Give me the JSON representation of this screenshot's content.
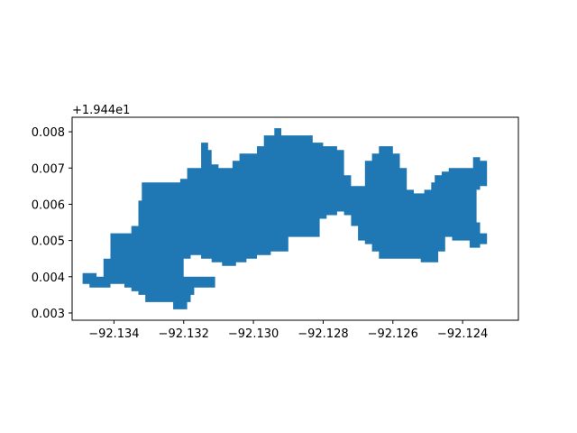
{
  "chart_data": {
    "type": "geo-raster-polygon",
    "offset_text": "+1.944e1",
    "x_ticks": [
      {
        "value": -92.134,
        "label": "−92.134"
      },
      {
        "value": -92.132,
        "label": "−92.132"
      },
      {
        "value": -92.13,
        "label": "−92.130"
      },
      {
        "value": -92.128,
        "label": "−92.128"
      },
      {
        "value": -92.126,
        "label": "−92.126"
      },
      {
        "value": -92.124,
        "label": "−92.124"
      }
    ],
    "y_ticks": [
      {
        "value": 0.003,
        "label": "0.003"
      },
      {
        "value": 0.004,
        "label": "0.004"
      },
      {
        "value": 0.005,
        "label": "0.005"
      },
      {
        "value": 0.006,
        "label": "0.006"
      },
      {
        "value": 0.007,
        "label": "0.007"
      },
      {
        "value": 0.008,
        "label": "0.008"
      }
    ],
    "xlim": [
      -92.1352,
      -92.1224
    ],
    "ylim": [
      0.0028,
      0.0084
    ],
    "grid": false,
    "fill_color": "#1f77b4",
    "outline": [
      [
        -92.1349,
        0.0041
      ],
      [
        -92.1345,
        0.0041
      ],
      [
        -92.1345,
        0.004
      ],
      [
        -92.1343,
        0.004
      ],
      [
        -92.1343,
        0.0045
      ],
      [
        -92.1341,
        0.0045
      ],
      [
        -92.1341,
        0.0052
      ],
      [
        -92.1335,
        0.0052
      ],
      [
        -92.1335,
        0.0054
      ],
      [
        -92.1333,
        0.0054
      ],
      [
        -92.1333,
        0.0061
      ],
      [
        -92.1332,
        0.0061
      ],
      [
        -92.1332,
        0.0066
      ],
      [
        -92.1321,
        0.0066
      ],
      [
        -92.1321,
        0.0067
      ],
      [
        -92.1319,
        0.0067
      ],
      [
        -92.1319,
        0.007
      ],
      [
        -92.1315,
        0.007
      ],
      [
        -92.1315,
        0.0077
      ],
      [
        -92.1313,
        0.0077
      ],
      [
        -92.1313,
        0.0075
      ],
      [
        -92.1312,
        0.0075
      ],
      [
        -92.1312,
        0.0071
      ],
      [
        -92.131,
        0.0071
      ],
      [
        -92.131,
        0.007
      ],
      [
        -92.1306,
        0.007
      ],
      [
        -92.1306,
        0.0072
      ],
      [
        -92.1304,
        0.0072
      ],
      [
        -92.1304,
        0.0074
      ],
      [
        -92.1299,
        0.0074
      ],
      [
        -92.1299,
        0.0076
      ],
      [
        -92.1297,
        0.0076
      ],
      [
        -92.1297,
        0.0079
      ],
      [
        -92.1294,
        0.0079
      ],
      [
        -92.1294,
        0.0081
      ],
      [
        -92.1292,
        0.0081
      ],
      [
        -92.1292,
        0.0079
      ],
      [
        -92.1283,
        0.0079
      ],
      [
        -92.1283,
        0.0077
      ],
      [
        -92.128,
        0.0077
      ],
      [
        -92.128,
        0.0076
      ],
      [
        -92.1276,
        0.0076
      ],
      [
        -92.1276,
        0.0075
      ],
      [
        -92.1274,
        0.0075
      ],
      [
        -92.1274,
        0.0068
      ],
      [
        -92.1272,
        0.0068
      ],
      [
        -92.1272,
        0.0065
      ],
      [
        -92.1268,
        0.0065
      ],
      [
        -92.1268,
        0.0072
      ],
      [
        -92.1266,
        0.0072
      ],
      [
        -92.1266,
        0.0074
      ],
      [
        -92.1264,
        0.0074
      ],
      [
        -92.1264,
        0.0076
      ],
      [
        -92.126,
        0.0076
      ],
      [
        -92.126,
        0.0074
      ],
      [
        -92.1258,
        0.0074
      ],
      [
        -92.1258,
        0.007
      ],
      [
        -92.1256,
        0.007
      ],
      [
        -92.1256,
        0.0064
      ],
      [
        -92.1254,
        0.0064
      ],
      [
        -92.1254,
        0.0063
      ],
      [
        -92.1251,
        0.0063
      ],
      [
        -92.1251,
        0.0064
      ],
      [
        -92.1249,
        0.0064
      ],
      [
        -92.1249,
        0.0066
      ],
      [
        -92.1248,
        0.0066
      ],
      [
        -92.1248,
        0.0068
      ],
      [
        -92.1246,
        0.0068
      ],
      [
        -92.1246,
        0.0069
      ],
      [
        -92.1244,
        0.0069
      ],
      [
        -92.1244,
        0.007
      ],
      [
        -92.1237,
        0.007
      ],
      [
        -92.1237,
        0.0073
      ],
      [
        -92.1235,
        0.0073
      ],
      [
        -92.1235,
        0.0072
      ],
      [
        -92.1233,
        0.0072
      ],
      [
        -92.1233,
        0.0065
      ],
      [
        -92.1235,
        0.0065
      ],
      [
        -92.1235,
        0.0064
      ],
      [
        -92.1236,
        0.0064
      ],
      [
        -92.1236,
        0.0055
      ],
      [
        -92.1235,
        0.0055
      ],
      [
        -92.1235,
        0.0052
      ],
      [
        -92.1233,
        0.0052
      ],
      [
        -92.1233,
        0.0049
      ],
      [
        -92.1235,
        0.0049
      ],
      [
        -92.1235,
        0.0048
      ],
      [
        -92.1238,
        0.0048
      ],
      [
        -92.1238,
        0.005
      ],
      [
        -92.1243,
        0.005
      ],
      [
        -92.1243,
        0.0051
      ],
      [
        -92.1245,
        0.0051
      ],
      [
        -92.1245,
        0.0047
      ],
      [
        -92.1247,
        0.0047
      ],
      [
        -92.1247,
        0.0044
      ],
      [
        -92.1252,
        0.0044
      ],
      [
        -92.1252,
        0.0045
      ],
      [
        -92.1264,
        0.0045
      ],
      [
        -92.1264,
        0.0047
      ],
      [
        -92.1266,
        0.0047
      ],
      [
        -92.1266,
        0.0049
      ],
      [
        -92.1268,
        0.0049
      ],
      [
        -92.1268,
        0.005
      ],
      [
        -92.127,
        0.005
      ],
      [
        -92.127,
        0.0054
      ],
      [
        -92.1272,
        0.0054
      ],
      [
        -92.1272,
        0.0057
      ],
      [
        -92.1274,
        0.0057
      ],
      [
        -92.1274,
        0.0058
      ],
      [
        -92.1276,
        0.0058
      ],
      [
        -92.1276,
        0.0057
      ],
      [
        -92.1279,
        0.0057
      ],
      [
        -92.1279,
        0.0056
      ],
      [
        -92.1281,
        0.0056
      ],
      [
        -92.1281,
        0.0051
      ],
      [
        -92.129,
        0.0051
      ],
      [
        -92.129,
        0.0047
      ],
      [
        -92.1295,
        0.0047
      ],
      [
        -92.1295,
        0.0046
      ],
      [
        -92.1299,
        0.0046
      ],
      [
        -92.1299,
        0.0045
      ],
      [
        -92.1302,
        0.0045
      ],
      [
        -92.1302,
        0.0044
      ],
      [
        -92.1305,
        0.0044
      ],
      [
        -92.1305,
        0.0043
      ],
      [
        -92.1309,
        0.0043
      ],
      [
        -92.1309,
        0.0044
      ],
      [
        -92.1312,
        0.0044
      ],
      [
        -92.1312,
        0.0045
      ],
      [
        -92.1315,
        0.0045
      ],
      [
        -92.1315,
        0.0046
      ],
      [
        -92.1318,
        0.0046
      ],
      [
        -92.1318,
        0.0045
      ],
      [
        -92.132,
        0.0045
      ],
      [
        -92.132,
        0.004
      ],
      [
        -92.1311,
        0.004
      ],
      [
        -92.1311,
        0.0037
      ],
      [
        -92.1317,
        0.0037
      ],
      [
        -92.1317,
        0.0035
      ],
      [
        -92.1318,
        0.0035
      ],
      [
        -92.1318,
        0.0033
      ],
      [
        -92.1319,
        0.0033
      ],
      [
        -92.1319,
        0.0031
      ],
      [
        -92.1323,
        0.0031
      ],
      [
        -92.1323,
        0.0033
      ],
      [
        -92.1331,
        0.0033
      ],
      [
        -92.1331,
        0.0035
      ],
      [
        -92.1333,
        0.0035
      ],
      [
        -92.1333,
        0.0036
      ],
      [
        -92.1335,
        0.0036
      ],
      [
        -92.1335,
        0.0037
      ],
      [
        -92.1337,
        0.0037
      ],
      [
        -92.1337,
        0.0038
      ],
      [
        -92.1341,
        0.0038
      ],
      [
        -92.1341,
        0.0037
      ],
      [
        -92.1347,
        0.0037
      ],
      [
        -92.1347,
        0.0038
      ],
      [
        -92.1349,
        0.0038
      ]
    ],
    "holes": []
  }
}
